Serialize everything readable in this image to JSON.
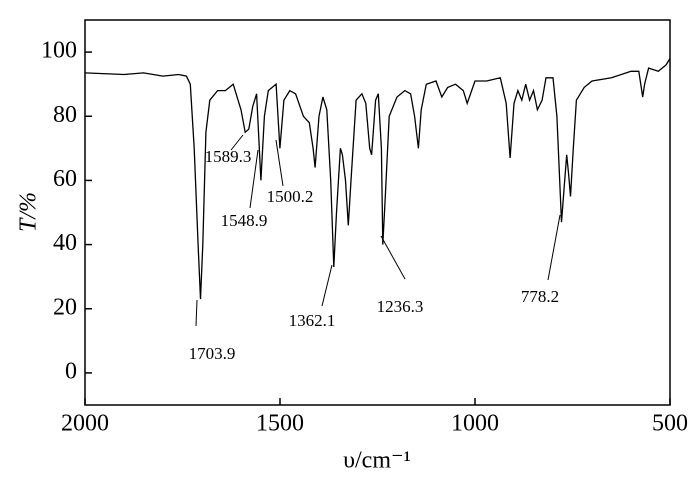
{
  "chart_data": {
    "type": "line",
    "x_label": "υ/cm⁻¹",
    "y_label": "T/%",
    "xlim": [
      2000,
      500
    ],
    "ylim": [
      -10,
      110
    ],
    "xticks": [
      2000,
      1500,
      1000,
      500
    ],
    "yticks": [
      0,
      20,
      40,
      60,
      80,
      100
    ],
    "color": "#000000",
    "x": [
      2000,
      1900,
      1850,
      1800,
      1760,
      1740,
      1730,
      1720,
      1710,
      1703.9,
      1698,
      1690,
      1680,
      1660,
      1640,
      1620,
      1600,
      1589.3,
      1580,
      1570,
      1560,
      1548.9,
      1540,
      1530,
      1520,
      1510,
      1500.2,
      1490,
      1475,
      1460,
      1440,
      1425,
      1415,
      1410,
      1400,
      1390,
      1380,
      1370,
      1362.1,
      1355,
      1345,
      1340,
      1332,
      1325,
      1318,
      1305,
      1290,
      1280,
      1270,
      1265,
      1255,
      1248,
      1240,
      1236.3,
      1230,
      1220,
      1200,
      1180,
      1165,
      1155,
      1145,
      1138,
      1125,
      1100,
      1085,
      1070,
      1050,
      1030,
      1020,
      1000,
      970,
      935,
      920,
      910,
      900,
      890,
      880,
      870,
      860,
      850,
      840,
      828,
      818,
      800,
      790,
      778.2,
      770,
      765,
      760,
      755,
      748,
      740,
      720,
      700,
      650,
      600,
      580,
      570,
      565,
      555,
      530,
      510,
      500
    ],
    "values": [
      93.5,
      93,
      93.5,
      92.5,
      93,
      92.5,
      90,
      70,
      40,
      23,
      40,
      75,
      85,
      88,
      88,
      90,
      82,
      75,
      76,
      83,
      87,
      60,
      80,
      88,
      89,
      90,
      70,
      85,
      88,
      87,
      80,
      78,
      70,
      64,
      80,
      86,
      82,
      60,
      33,
      50,
      70,
      68,
      60,
      46,
      60,
      85,
      87,
      84,
      70,
      68,
      85,
      87,
      70,
      40,
      55,
      80,
      86,
      88,
      87,
      80,
      70,
      82,
      90,
      91,
      86,
      89,
      90,
      88,
      84,
      91,
      91,
      92,
      84,
      67,
      84,
      88,
      85,
      90,
      85,
      88,
      82,
      85,
      92,
      92,
      80,
      47,
      60,
      68,
      62,
      55,
      70,
      85,
      89,
      91,
      92,
      94,
      94,
      86,
      90,
      95,
      94,
      96,
      98
    ],
    "annotations": [
      "1703.9",
      "1589.3",
      "1548.9",
      "1500.2",
      "1362.1",
      "1236.3",
      "778.2"
    ]
  }
}
